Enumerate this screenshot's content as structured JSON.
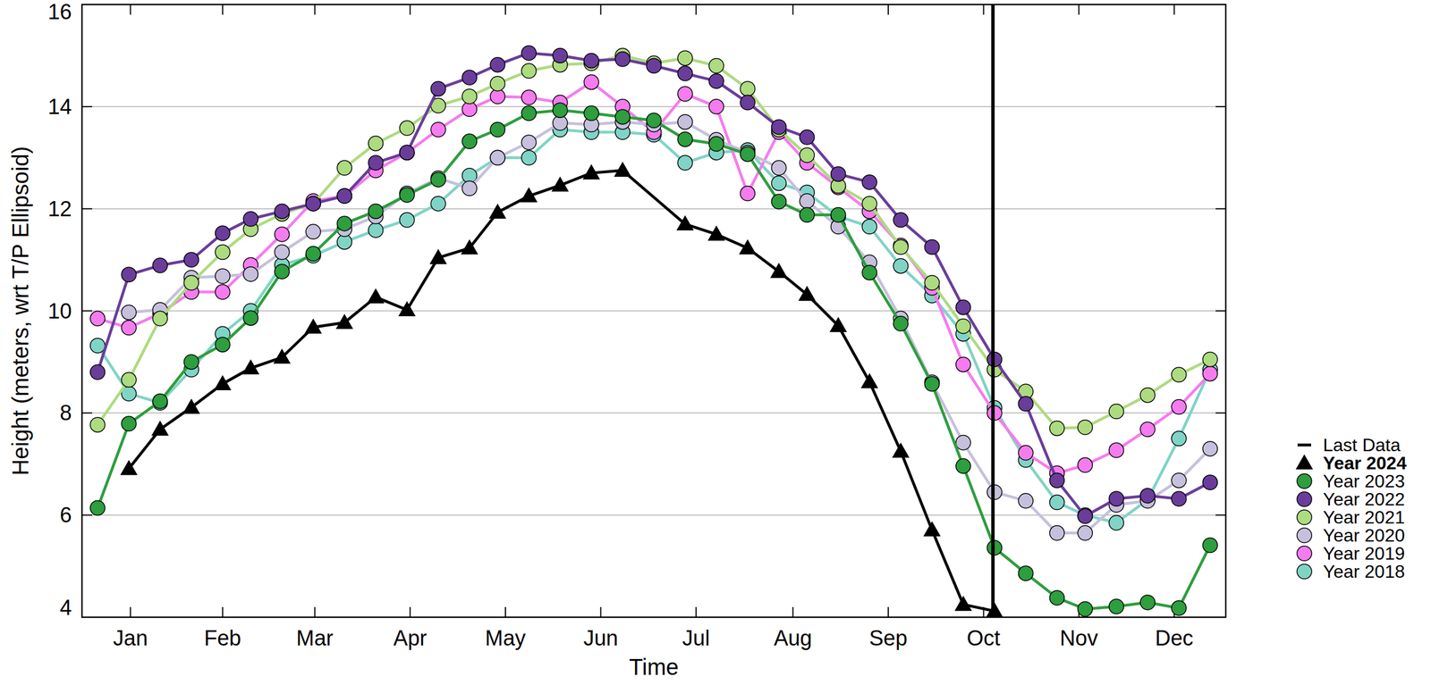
{
  "chart_data": {
    "type": "line",
    "x_label": "Time",
    "y_label": "Height (meters, wrt T/P Ellipsoid)",
    "x": [
      5,
      15,
      25,
      35,
      45,
      54,
      64,
      74,
      84,
      94,
      104,
      114,
      124,
      133,
      143,
      153,
      163,
      173,
      183,
      193,
      203,
      213,
      223,
      232,
      242,
      252,
      262,
      272,
      282,
      292,
      302,
      312,
      321,
      331,
      341,
      351,
      361
    ],
    "xlim": [
      0,
      366
    ],
    "xticks": [
      {
        "value": 15.5,
        "label": "Jan"
      },
      {
        "value": 45,
        "label": "Feb"
      },
      {
        "value": 74.5,
        "label": "Mar"
      },
      {
        "value": 105,
        "label": "Apr"
      },
      {
        "value": 135.5,
        "label": "May"
      },
      {
        "value": 166,
        "label": "Jun"
      },
      {
        "value": 196.5,
        "label": "Jul"
      },
      {
        "value": 227.5,
        "label": "Aug"
      },
      {
        "value": 258,
        "label": "Sep"
      },
      {
        "value": 288.5,
        "label": "Oct"
      },
      {
        "value": 319,
        "label": "Nov"
      },
      {
        "value": 349.5,
        "label": "Dec"
      }
    ],
    "ylim": [
      4,
      16
    ],
    "yticks": [
      4,
      6,
      8,
      10,
      12,
      14,
      16
    ],
    "grid": "y",
    "legend": "right",
    "annotations": [
      {
        "label": "Last Data",
        "x": 291.5
      }
    ],
    "series": [
      {
        "name": "Year 2024",
        "color": "#000000",
        "marker": "triangle",
        "x": [
          15,
          25,
          35,
          45,
          54,
          64,
          74,
          84,
          94,
          104,
          114,
          124,
          133,
          143,
          153,
          163,
          173,
          193,
          203,
          213,
          223,
          232,
          242,
          252,
          262,
          272,
          282,
          292
        ],
        "values": [
          6.91,
          7.68,
          8.11,
          8.57,
          8.88,
          9.09,
          9.68,
          9.77,
          10.27,
          10.02,
          11.04,
          11.23,
          11.93,
          12.25,
          12.46,
          12.7,
          12.75,
          11.7,
          11.5,
          11.23,
          10.77,
          10.32,
          9.71,
          8.61,
          7.25,
          5.71,
          4.25,
          4.12
        ]
      },
      {
        "name": "Year 2023",
        "color": "#2e9e3e",
        "marker": "circle",
        "values": [
          6.14,
          7.79,
          8.23,
          9.0,
          9.34,
          9.86,
          10.77,
          11.12,
          11.71,
          11.95,
          12.27,
          12.57,
          13.32,
          13.55,
          13.87,
          13.93,
          13.87,
          13.8,
          13.73,
          13.36,
          13.27,
          13.07,
          12.14,
          11.88,
          11.88,
          10.75,
          9.75,
          8.57,
          6.96,
          5.36,
          4.86,
          4.38,
          4.16,
          4.21,
          4.29,
          4.18,
          5.41
        ]
      },
      {
        "name": "Year 2022",
        "color": "#6a3d9a",
        "marker": "circle",
        "values": [
          8.8,
          10.71,
          10.89,
          11.0,
          11.52,
          11.8,
          11.95,
          12.1,
          12.25,
          12.9,
          13.1,
          14.35,
          14.57,
          14.82,
          15.05,
          15.0,
          14.9,
          14.93,
          14.8,
          14.65,
          14.5,
          14.08,
          13.6,
          13.4,
          12.68,
          12.52,
          11.78,
          11.25,
          10.07,
          9.05,
          8.18,
          6.68,
          5.98,
          6.32,
          6.38,
          6.32,
          6.64
        ]
      },
      {
        "name": "Year 2021",
        "color": "#addb80",
        "marker": "circle",
        "values": [
          7.77,
          8.65,
          9.85,
          10.55,
          11.15,
          11.6,
          11.9,
          12.1,
          12.8,
          13.28,
          13.58,
          14.02,
          14.2,
          14.45,
          14.7,
          14.82,
          14.85,
          15.0,
          14.85,
          14.95,
          14.8,
          14.35,
          13.55,
          13.05,
          12.45,
          12.1,
          11.25,
          10.55,
          9.7,
          8.85,
          8.42,
          7.7,
          7.72,
          8.03,
          8.35,
          8.75,
          9.05
        ]
      },
      {
        "name": "Year 2020",
        "color": "#c6c0dc",
        "marker": "circle",
        "values": [
          null,
          9.97,
          10.02,
          10.65,
          10.68,
          10.72,
          11.15,
          11.55,
          11.6,
          11.85,
          12.3,
          12.6,
          12.4,
          13.0,
          13.3,
          13.68,
          13.65,
          13.7,
          13.65,
          13.7,
          13.35,
          13.1,
          12.8,
          12.15,
          11.65,
          10.95,
          9.85,
          8.6,
          7.42,
          6.45,
          6.28,
          5.65,
          5.65,
          6.2,
          6.28,
          6.68,
          7.3
        ]
      },
      {
        "name": "Year 2019",
        "color": "#f57cee",
        "marker": "circle",
        "values": [
          9.85,
          9.67,
          9.95,
          10.37,
          10.37,
          10.9,
          11.5,
          12.15,
          12.25,
          12.75,
          13.1,
          13.55,
          13.95,
          14.2,
          14.18,
          14.08,
          14.48,
          14.0,
          13.5,
          14.25,
          14.0,
          12.3,
          13.5,
          12.9,
          12.42,
          11.95,
          11.28,
          10.45,
          8.95,
          8.0,
          7.22,
          6.82,
          6.98,
          7.27,
          7.68,
          8.12,
          8.77
        ]
      },
      {
        "name": "Year 2018",
        "color": "#80d4c6",
        "marker": "circle",
        "values": [
          9.32,
          8.38,
          8.2,
          8.85,
          9.55,
          10.0,
          10.9,
          11.08,
          11.35,
          11.58,
          11.78,
          12.1,
          12.65,
          13.0,
          13.0,
          13.55,
          13.5,
          13.5,
          13.45,
          12.9,
          13.1,
          13.15,
          12.5,
          12.32,
          11.85,
          11.65,
          10.88,
          10.3,
          9.55,
          8.1,
          7.08,
          6.25,
          6.0,
          5.85,
          6.3,
          7.5,
          8.85
        ]
      }
    ]
  }
}
